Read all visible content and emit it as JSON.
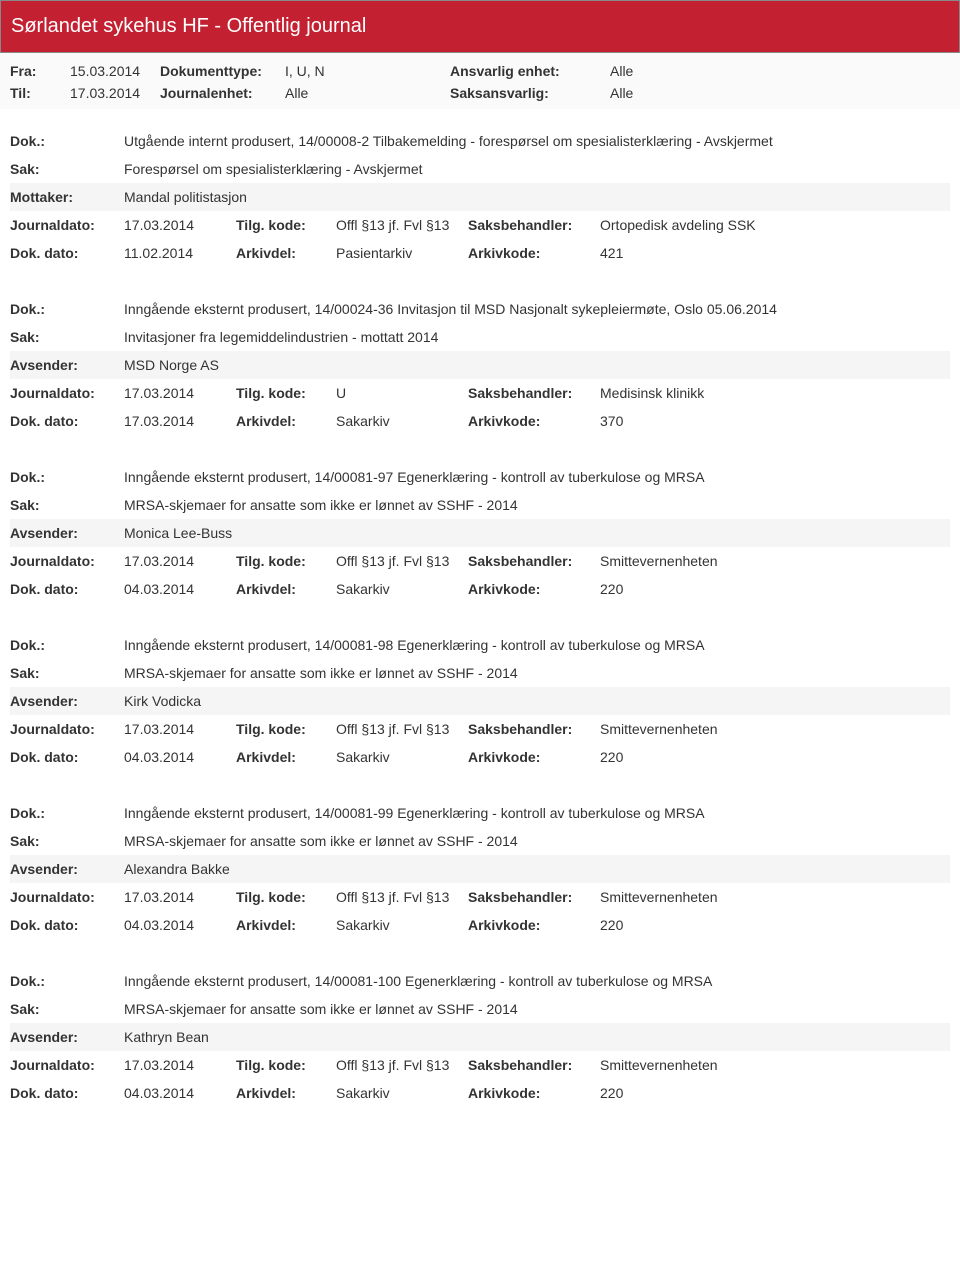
{
  "header": {
    "title": "Sørlandet sykehus HF - Offentlig journal"
  },
  "filters": {
    "fra_label": "Fra:",
    "fra_value": "15.03.2014",
    "til_label": "Til:",
    "til_value": "17.03.2014",
    "doktype_label": "Dokumenttype:",
    "doktype_value": "I, U, N",
    "journalenhet_label": "Journalenhet:",
    "journalenhet_value": "Alle",
    "ansvarlig_label": "Ansvarlig enhet:",
    "ansvarlig_value": "Alle",
    "saksansvarlig_label": "Saksansvarlig:",
    "saksansvarlig_value": "Alle"
  },
  "field_labels": {
    "dok": "Dok.:",
    "sak": "Sak:",
    "mottaker": "Mottaker:",
    "avsender": "Avsender:",
    "journaldato": "Journaldato:",
    "dokdato": "Dok. dato:",
    "tilgkode": "Tilg. kode:",
    "arkivdel": "Arkivdel:",
    "saksbehandler": "Saksbehandler:",
    "arkivkode": "Arkivkode:"
  },
  "entries": [
    {
      "dok": "Utgående internt produsert, 14/00008-2 Tilbakemelding - forespørsel om spesialisterklæring - Avskjermet",
      "sak": "Forespørsel om spesialisterklæring - Avskjermet",
      "party_label": "Mottaker:",
      "party": "Mandal politistasjon",
      "journaldato": "17.03.2014",
      "tilgkode": "Offl §13 jf. Fvl §13",
      "saksbehandler": "Ortopedisk avdeling SSK",
      "dokdato": "11.02.2014",
      "arkivdel": "Pasientarkiv",
      "arkivkode": "421"
    },
    {
      "dok": "Inngående eksternt produsert, 14/00024-36 Invitasjon til MSD Nasjonalt sykepleiermøte, Oslo 05.06.2014",
      "sak": "Invitasjoner fra legemiddelindustrien - mottatt 2014",
      "party_label": "Avsender:",
      "party": "MSD Norge AS",
      "journaldato": "17.03.2014",
      "tilgkode": "U",
      "saksbehandler": "Medisinsk klinikk",
      "dokdato": "17.03.2014",
      "arkivdel": "Sakarkiv",
      "arkivkode": "370"
    },
    {
      "dok": "Inngående eksternt produsert, 14/00081-97 Egenerklæring - kontroll av tuberkulose og MRSA",
      "sak": "MRSA-skjemaer for ansatte som ikke er lønnet av SSHF - 2014",
      "party_label": "Avsender:",
      "party": "Monica Lee-Buss",
      "journaldato": "17.03.2014",
      "tilgkode": "Offl §13 jf. Fvl §13",
      "saksbehandler": "Smittevernenheten",
      "dokdato": "04.03.2014",
      "arkivdel": "Sakarkiv",
      "arkivkode": "220"
    },
    {
      "dok": "Inngående eksternt produsert, 14/00081-98 Egenerklæring - kontroll av tuberkulose og MRSA",
      "sak": "MRSA-skjemaer for ansatte som ikke er lønnet av SSHF - 2014",
      "party_label": "Avsender:",
      "party": "Kirk Vodicka",
      "journaldato": "17.03.2014",
      "tilgkode": "Offl §13 jf. Fvl §13",
      "saksbehandler": "Smittevernenheten",
      "dokdato": "04.03.2014",
      "arkivdel": "Sakarkiv",
      "arkivkode": "220"
    },
    {
      "dok": "Inngående eksternt produsert, 14/00081-99 Egenerklæring - kontroll av tuberkulose og MRSA",
      "sak": "MRSA-skjemaer for ansatte som ikke er lønnet av SSHF - 2014",
      "party_label": "Avsender:",
      "party": "Alexandra Bakke",
      "journaldato": "17.03.2014",
      "tilgkode": "Offl §13 jf. Fvl §13",
      "saksbehandler": "Smittevernenheten",
      "dokdato": "04.03.2014",
      "arkivdel": "Sakarkiv",
      "arkivkode": "220"
    },
    {
      "dok": "Inngående eksternt produsert, 14/00081-100 Egenerklæring - kontroll av tuberkulose og MRSA",
      "sak": "MRSA-skjemaer for ansatte som ikke er lønnet av SSHF - 2014",
      "party_label": "Avsender:",
      "party": "Kathryn Bean",
      "journaldato": "17.03.2014",
      "tilgkode": "Offl §13 jf. Fvl §13",
      "saksbehandler": "Smittevernenheten",
      "dokdato": "04.03.2014",
      "arkivdel": "Sakarkiv",
      "arkivkode": "220"
    }
  ]
}
